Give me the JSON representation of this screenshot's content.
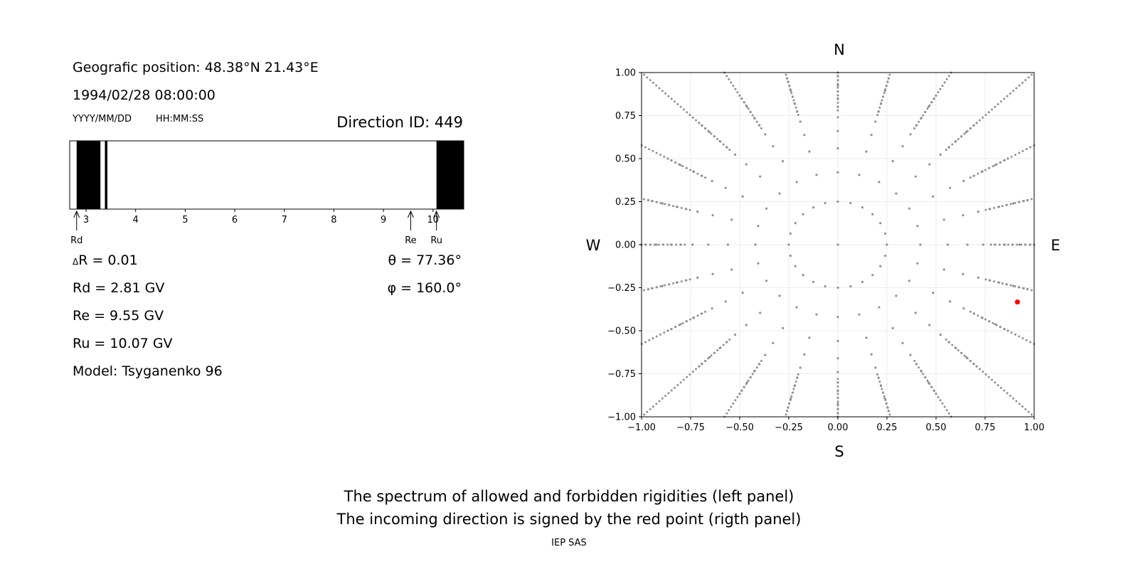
{
  "left_panel": {
    "position": "Geografic position: 48.38°N 21.43°E",
    "datetime": "1994/02/28 08:00:00",
    "date_format": "YYYY/MM/DD",
    "time_format": "HH:MM:SS",
    "direction_id": "Direction ID: 449",
    "delta_r": "R = 0.01",
    "delta_symbol": "Δ",
    "theta": "θ = 77.36°",
    "phi": "φ = 160.0°",
    "rd": "Rd = 2.81 GV",
    "re": "Re = 9.55 GV",
    "ru": "Ru = 10.07 GV",
    "model": "Model: Tsyganenko 96"
  },
  "right_panel": {
    "north": "N",
    "south": "S",
    "west": "W",
    "east": "E"
  },
  "captions": {
    "line1": "The spectrum of allowed and forbidden rigidities (left panel)",
    "line2": "The incoming direction is signed by the red point (rigth panel)",
    "footer": "IEP SAS"
  },
  "chart_data": [
    {
      "type": "bar",
      "description_of_marks": "rigidity spectrum: black = forbidden bands, white = allowed",
      "xlim": [
        2.67,
        10.62
      ],
      "xticks": [
        3,
        4,
        5,
        6,
        7,
        8,
        9,
        10
      ],
      "forbidden_bands": [
        [
          2.81,
          3.29
        ],
        [
          3.38,
          3.43
        ],
        [
          10.07,
          10.62
        ]
      ],
      "markers": [
        {
          "label": "Rd",
          "value": 2.81
        },
        {
          "label": "Re",
          "value": 9.55
        },
        {
          "label": "Ru",
          "value": 10.07
        }
      ]
    },
    {
      "type": "scatter",
      "xlim": [
        -1.0,
        1.0
      ],
      "ylim": [
        -1.0,
        1.0
      ],
      "xticks": [
        "−1.00",
        "−0.75",
        "−0.50",
        "−0.25",
        "0.00",
        "0.25",
        "0.50",
        "0.75",
        "1.00"
      ],
      "yticks": [
        "1.00",
        "0.75",
        "0.50",
        "0.25",
        "0.00",
        "−0.25",
        "−0.50",
        "−0.75",
        "−1.00"
      ],
      "grid": true,
      "grid_points": {
        "color": "#909090",
        "rays": 24,
        "ring_radii": [
          0.0,
          0.25,
          0.42,
          0.56,
          0.66,
          0.74,
          0.8,
          0.85,
          0.89,
          0.925,
          0.955,
          0.98,
          1.0
        ]
      },
      "highlight_point": {
        "x": 0.915,
        "y": -0.333,
        "color": "#ff0000"
      }
    }
  ]
}
